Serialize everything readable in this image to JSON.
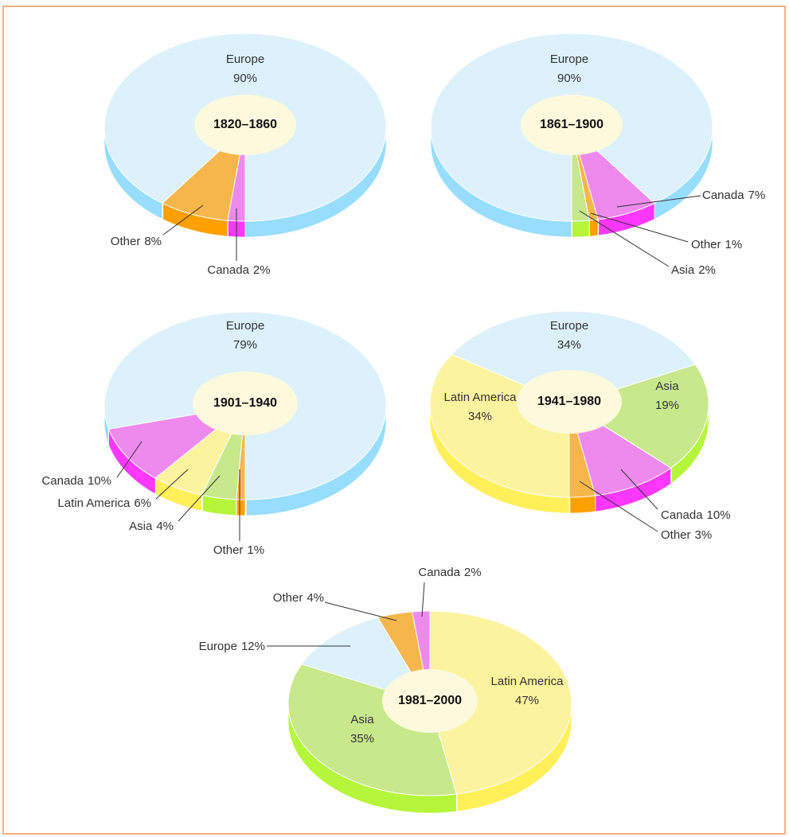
{
  "chart_data": [
    {
      "type": "pie",
      "title": "1820–1860",
      "categories": [
        "Europe",
        "Other",
        "Canada"
      ],
      "values": [
        90,
        8,
        2
      ],
      "value_labels": [
        "90%",
        "8%",
        "2%"
      ],
      "colors": [
        "#dcf1fb",
        "#f6b64b",
        "#ee8aee"
      ]
    },
    {
      "type": "pie",
      "title": "1861–1900",
      "categories": [
        "Europe",
        "Canada",
        "Other",
        "Asia"
      ],
      "values": [
        90,
        7,
        1,
        2
      ],
      "value_labels": [
        "90%",
        "7%",
        "1%",
        "2%"
      ],
      "colors": [
        "#dcf1fb",
        "#ee8aee",
        "#f6b64b",
        "#c8e88c"
      ]
    },
    {
      "type": "pie",
      "title": "1901–1940",
      "categories": [
        "Europe",
        "Canada",
        "Latin America",
        "Asia",
        "Other"
      ],
      "values": [
        79,
        10,
        6,
        4,
        1
      ],
      "value_labels": [
        "79%",
        "10%",
        "6%",
        "4%",
        "1%"
      ],
      "colors": [
        "#dcf1fb",
        "#ee8aee",
        "#fcf39e",
        "#c8e88c",
        "#f6b64b"
      ]
    },
    {
      "type": "pie",
      "title": "1941–1980",
      "categories": [
        "Latin America",
        "Europe",
        "Asia",
        "Canada",
        "Other"
      ],
      "values": [
        34,
        34,
        19,
        10,
        3
      ],
      "value_labels": [
        "34%",
        "34%",
        "19%",
        "10%",
        "3%"
      ],
      "colors": [
        "#fcf39e",
        "#dcf1fb",
        "#c8e88c",
        "#ee8aee",
        "#f6b64b"
      ]
    },
    {
      "type": "pie",
      "title": "1981–2000",
      "categories": [
        "Latin America",
        "Asia",
        "Europe",
        "Other",
        "Canada"
      ],
      "values": [
        47,
        35,
        12,
        4,
        2
      ],
      "value_labels": [
        "47%",
        "35%",
        "12%",
        "4%",
        "2%"
      ],
      "colors": [
        "#fcf39e",
        "#c8e88c",
        "#dcf1fb",
        "#f6b64b",
        "#ee8aee"
      ]
    }
  ]
}
